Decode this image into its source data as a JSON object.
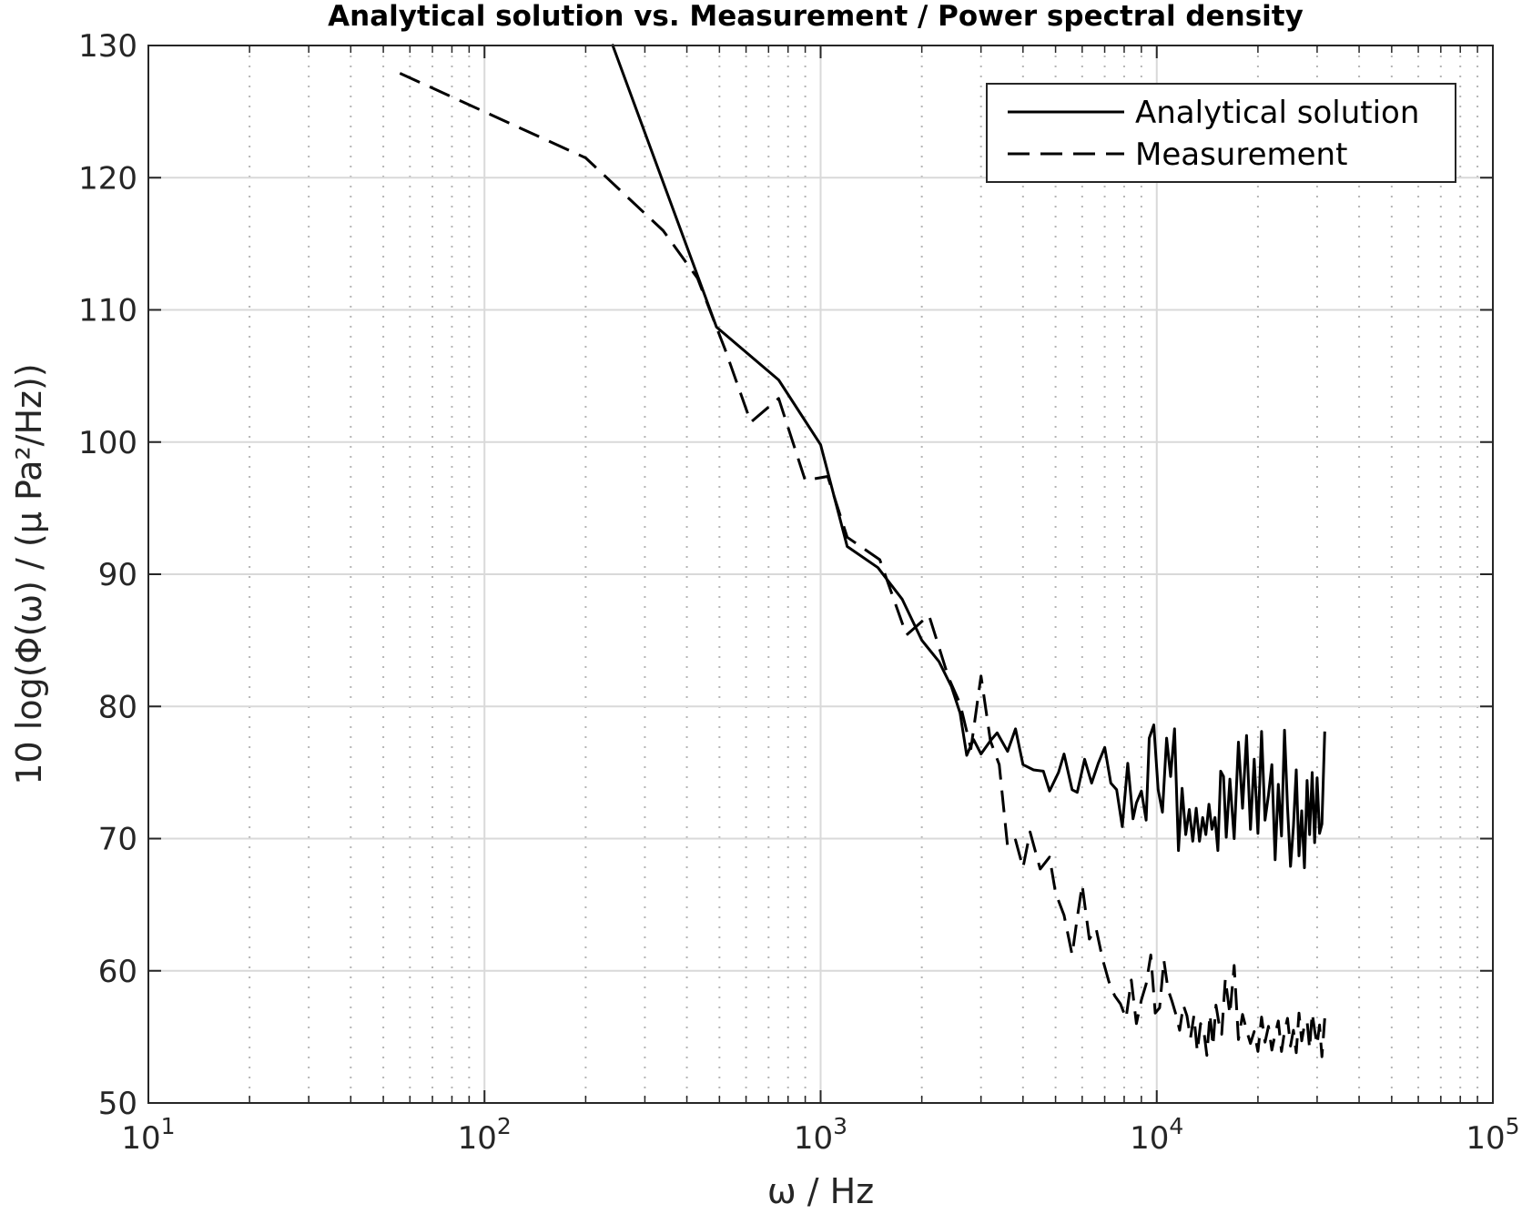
{
  "chart_data": {
    "type": "line",
    "title": "Analytical solution vs. Measurement / Power spectral density",
    "xlabel": "ω / Hz",
    "ylabel": "10 log(Φ(ω) / (μ Pa²/Hz))",
    "x_scale": "log",
    "xlim": [
      10,
      100000
    ],
    "ylim": [
      50,
      130
    ],
    "x_ticks": [
      10,
      100,
      1000,
      10000,
      100000
    ],
    "x_tick_labels": [
      {
        "base": "10",
        "exp": "1"
      },
      {
        "base": "10",
        "exp": "2"
      },
      {
        "base": "10",
        "exp": "3"
      },
      {
        "base": "10",
        "exp": "4"
      },
      {
        "base": "10",
        "exp": "5"
      }
    ],
    "y_ticks": [
      50,
      60,
      70,
      80,
      90,
      100,
      110,
      120,
      130
    ],
    "y_tick_labels": [
      "50",
      "60",
      "70",
      "80",
      "90",
      "100",
      "110",
      "120",
      "130"
    ],
    "grid": true,
    "minor_grid": true,
    "legend_position": "top-right",
    "series": [
      {
        "name": "Analytical solution",
        "style": "solid",
        "color": "#000000",
        "x": [
          240,
          490,
          750,
          1000,
          1200,
          1480,
          1750,
          2000,
          2250,
          2450,
          2600,
          2720,
          2850,
          3000,
          3200,
          3350,
          3600,
          3800,
          4000,
          4300,
          4600,
          4800,
          5100,
          5300,
          5600,
          5800,
          6100,
          6400,
          6700,
          7000,
          7300,
          7600,
          7900,
          8200,
          8500,
          8700,
          9000,
          9300,
          9500,
          9800,
          10100,
          10400,
          10700,
          11000,
          11300,
          11600,
          11900,
          12200,
          12500,
          12800,
          13100,
          13400,
          13700,
          14000,
          14300,
          14600,
          14900,
          15200,
          15500,
          15800,
          16100,
          16500,
          17000,
          17500,
          18000,
          18500,
          19000,
          19500,
          20000,
          20500,
          21000,
          21500,
          22000,
          22500,
          23000,
          23500,
          24000,
          24500,
          25000,
          25500,
          26000,
          26500,
          27000,
          27500,
          28000,
          28500,
          29000,
          29500,
          30000,
          30500,
          31000,
          31600
        ],
        "y": [
          130.1,
          108.7,
          104.7,
          99.8,
          92.1,
          90.5,
          88.1,
          85.0,
          83.4,
          81.5,
          79.5,
          76.3,
          77.5,
          76.4,
          77.4,
          78.0,
          76.6,
          78.3,
          75.6,
          75.2,
          75.1,
          73.6,
          75.0,
          76.4,
          73.7,
          73.5,
          76.0,
          74.2,
          75.7,
          76.9,
          74.2,
          73.7,
          70.9,
          75.7,
          71.5,
          72.7,
          73.6,
          71.4,
          77.6,
          78.6,
          73.7,
          72.0,
          77.6,
          74.7,
          78.3,
          69.1,
          73.8,
          70.3,
          72.2,
          69.8,
          72.3,
          69.8,
          71.6,
          70.3,
          72.6,
          70.7,
          71.6,
          69.1,
          75.1,
          74.7,
          70.1,
          74.5,
          70.0,
          77.3,
          72.3,
          77.8,
          70.7,
          76.0,
          70.4,
          78.1,
          71.4,
          73.3,
          75.6,
          68.4,
          74.1,
          70.2,
          78.2,
          72.4,
          67.9,
          70.9,
          75.2,
          68.7,
          72.1,
          67.8,
          74.4,
          70.3,
          75.0,
          69.7,
          74.6,
          70.4,
          71.1,
          78.1
        ]
      },
      {
        "name": "Measurement",
        "style": "dashed",
        "color": "#000000",
        "x": [
          56,
          200,
          340,
          430,
          520,
          620,
          750,
          900,
          1050,
          1200,
          1500,
          1800,
          2100,
          2400,
          2600,
          2800,
          3000,
          3200,
          3400,
          3600,
          3800,
          4000,
          4200,
          4500,
          4800,
          5000,
          5300,
          5600,
          5800,
          6000,
          6300,
          6600,
          6900,
          7200,
          7500,
          7800,
          8100,
          8400,
          8700,
          9000,
          9300,
          9600,
          9900,
          10200,
          10500,
          10800,
          11100,
          11400,
          11700,
          12000,
          12300,
          12600,
          12900,
          13200,
          13500,
          13800,
          14100,
          14400,
          14700,
          15000,
          15300,
          15600,
          16000,
          16500,
          17000,
          17500,
          18000,
          18500,
          19000,
          19500,
          20000,
          20500,
          21000,
          21500,
          22000,
          22500,
          23000,
          23500,
          24000,
          24500,
          25000,
          25500,
          26000,
          26500,
          27000,
          27500,
          28000,
          28500,
          29000,
          29500,
          30000,
          30500,
          31000,
          31600
        ],
        "y": [
          127.9,
          121.5,
          116.0,
          112.4,
          107.0,
          101.5,
          103.3,
          97.1,
          97.4,
          92.8,
          91.1,
          85.4,
          86.9,
          82.2,
          80.2,
          76.8,
          82.3,
          77.4,
          75.6,
          69.4,
          69.9,
          67.8,
          70.5,
          67.7,
          68.6,
          65.9,
          64.2,
          61.2,
          64.0,
          66.5,
          62.4,
          63.2,
          60.9,
          59.2,
          58.1,
          57.5,
          56.4,
          59.3,
          56.0,
          57.8,
          59.0,
          61.2,
          56.8,
          57.2,
          60.8,
          58.6,
          57.7,
          56.7,
          55.5,
          57.4,
          56.6,
          54.9,
          56.6,
          53.9,
          56.0,
          55.5,
          53.6,
          56.7,
          54.3,
          57.4,
          56.1,
          55.2,
          59.4,
          56.7,
          60.4,
          54.8,
          56.7,
          55.5,
          54.5,
          55.4,
          53.9,
          56.5,
          54.6,
          55.8,
          54.0,
          55.2,
          56.2,
          53.9,
          55.4,
          56.4,
          54.3,
          55.5,
          53.8,
          56.8,
          54.7,
          55.9,
          56.2,
          54.1,
          56.8,
          55.5,
          54.4,
          55.9,
          53.5,
          56.4
        ]
      }
    ]
  }
}
